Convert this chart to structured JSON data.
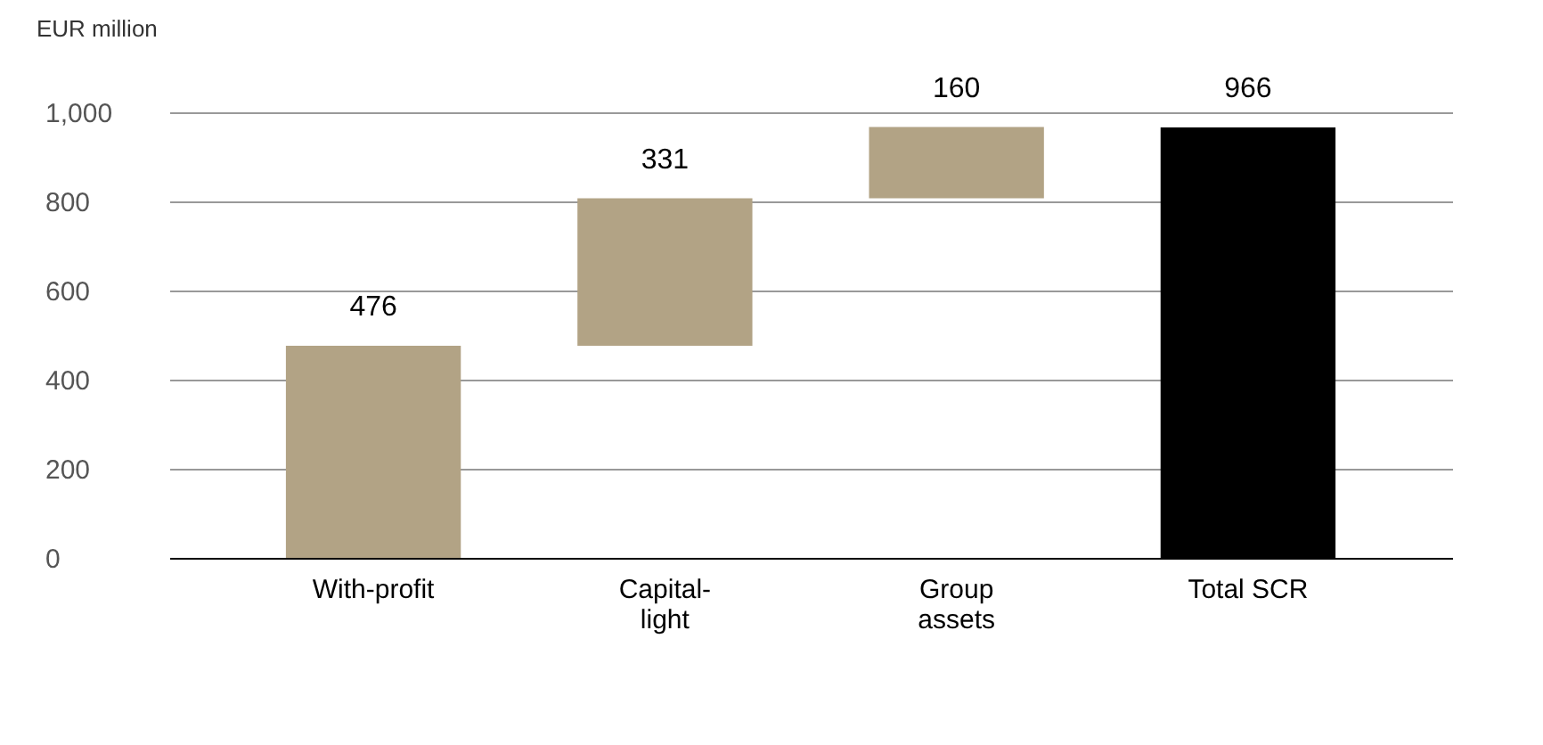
{
  "chart_data": {
    "type": "bar",
    "ylabel": "EUR million",
    "categories": [
      "With-profit",
      "Capital-light",
      "Group assets",
      "Total SCR"
    ],
    "values": [
      476,
      331,
      160,
      966
    ],
    "base": [
      0,
      476,
      807,
      0
    ],
    "colors": [
      "#b2a385",
      "#b2a385",
      "#b2a385",
      "#000000"
    ],
    "ylim": [
      0,
      1000
    ],
    "yticks": [
      0,
      200,
      400,
      600,
      800,
      {
        "value": 1000,
        "label": "1,000"
      }
    ],
    "grid": "y",
    "data_labels": true
  }
}
